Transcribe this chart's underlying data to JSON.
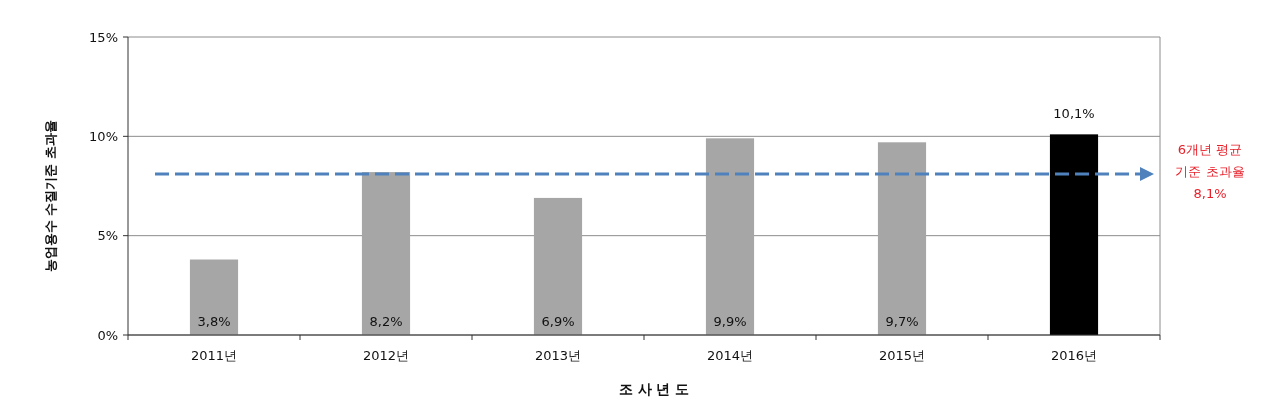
{
  "chart_data": {
    "type": "bar",
    "xlabel": "조 사 년 도",
    "ylabel": "농업용수 수질기준 초과율",
    "categories": [
      "2011년",
      "2012년",
      "2013년",
      "2014년",
      "2015년",
      "2016년"
    ],
    "values": [
      3.8,
      8.2,
      6.9,
      9.9,
      9.7,
      10.1
    ],
    "colors": [
      "#a6a6a6",
      "#a6a6a6",
      "#a6a6a6",
      "#a6a6a6",
      "#a6a6a6",
      "#000000"
    ],
    "value_labels": [
      "3,8%",
      "8,2%",
      "6,9%",
      "9,9%",
      "9,7%",
      "10,1%"
    ],
    "ylim": [
      0,
      15
    ],
    "yticks": [
      {
        "value": 0,
        "label": "0%"
      },
      {
        "value": 5,
        "label": "5%"
      },
      {
        "value": 10,
        "label": "10%"
      },
      {
        "value": 15,
        "label": "15%"
      }
    ],
    "grid": "y",
    "ref_lines": [
      {
        "axis": "y",
        "value": 8.1,
        "label": "6개년 평균\n기준 초과율\n8,1%",
        "color": "#4f81bd",
        "line_style": "dashed"
      }
    ]
  }
}
